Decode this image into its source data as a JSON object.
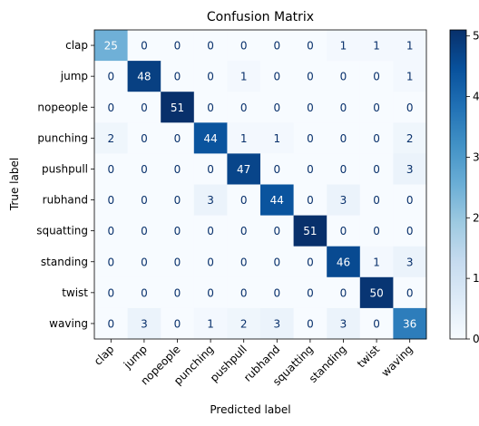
{
  "chart_data": {
    "type": "heatmap",
    "title": "Confusion Matrix",
    "xlabel": "Predicted label",
    "ylabel": "True label",
    "categories": [
      "clap",
      "jump",
      "nopeople",
      "punching",
      "pushpull",
      "rubhand",
      "squatting",
      "standing",
      "twist",
      "waving"
    ],
    "matrix": [
      [
        25,
        0,
        0,
        0,
        0,
        0,
        0,
        1,
        1,
        1
      ],
      [
        0,
        48,
        0,
        0,
        1,
        0,
        0,
        0,
        0,
        1
      ],
      [
        0,
        0,
        51,
        0,
        0,
        0,
        0,
        0,
        0,
        0
      ],
      [
        2,
        0,
        0,
        44,
        1,
        1,
        0,
        0,
        0,
        2
      ],
      [
        0,
        0,
        0,
        0,
        47,
        0,
        0,
        0,
        0,
        3
      ],
      [
        0,
        0,
        0,
        3,
        0,
        44,
        0,
        3,
        0,
        0
      ],
      [
        0,
        0,
        0,
        0,
        0,
        0,
        51,
        0,
        0,
        0
      ],
      [
        0,
        0,
        0,
        0,
        0,
        0,
        0,
        46,
        1,
        3
      ],
      [
        0,
        0,
        0,
        0,
        0,
        0,
        0,
        0,
        50,
        0
      ],
      [
        0,
        3,
        0,
        1,
        2,
        3,
        0,
        3,
        0,
        36
      ]
    ],
    "colormap": "Blues",
    "vmin": 0,
    "vmax": 51,
    "colorbar_ticks": [
      "0",
      "10",
      "20",
      "30",
      "40",
      "50"
    ]
  }
}
